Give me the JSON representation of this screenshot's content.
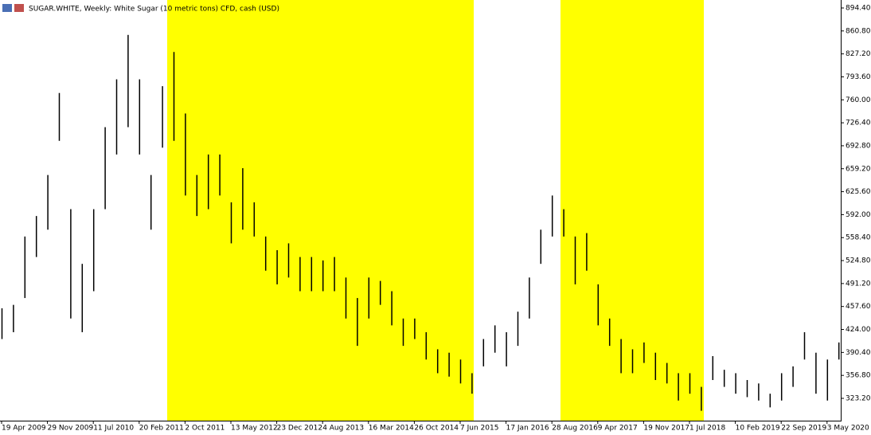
{
  "chart_data": {
    "type": "hl_bar",
    "title": "SUGAR.WHITE, Weekly:  White Sugar (10 metric tons) CFD, cash (USD)",
    "color": "#000000",
    "categories": [
      "19 Apr 2009",
      null,
      null,
      null,
      "29 Nov 2009",
      null,
      null,
      null,
      "11 Jul 2010",
      null,
      null,
      null,
      "20 Feb 2011",
      null,
      null,
      null,
      "2 Oct 2011",
      null,
      null,
      null,
      "13 May 2012",
      null,
      null,
      null,
      "23 Dec 2012",
      null,
      null,
      null,
      "4 Aug 2013",
      null,
      null,
      null,
      "16 Mar 2014",
      null,
      null,
      null,
      "26 Oct 2014",
      null,
      null,
      null,
      "7 Jun 2015",
      null,
      null,
      null,
      "17 Jan 2016",
      null,
      null,
      null,
      "28 Aug 2016",
      null,
      null,
      null,
      "9 Apr 2017",
      null,
      null,
      null,
      "19 Nov 2017",
      null,
      null,
      null,
      "1 Jul 2018",
      null,
      null,
      null,
      "10 Feb 2019",
      null,
      null,
      null,
      "22 Sep 2019",
      null,
      null,
      null,
      "3 May 2020",
      null
    ],
    "high": [
      455,
      460,
      560,
      590,
      650,
      770,
      600,
      520,
      600,
      720,
      790,
      855,
      790,
      650,
      780,
      830,
      740,
      650,
      680,
      680,
      610,
      660,
      610,
      560,
      540,
      550,
      530,
      530,
      525,
      530,
      500,
      470,
      500,
      495,
      480,
      440,
      440,
      420,
      395,
      390,
      380,
      360,
      410,
      430,
      420,
      450,
      500,
      570,
      620,
      600,
      560,
      565,
      490,
      440,
      410,
      395,
      405,
      390,
      375,
      360,
      360,
      340,
      385,
      365,
      360,
      350,
      345,
      330,
      360,
      370,
      420,
      390,
      380,
      405
    ],
    "low": [
      410,
      420,
      470,
      530,
      570,
      700,
      440,
      420,
      480,
      600,
      680,
      720,
      680,
      570,
      690,
      700,
      620,
      590,
      600,
      620,
      550,
      570,
      560,
      510,
      490,
      500,
      480,
      480,
      480,
      480,
      440,
      400,
      440,
      460,
      430,
      400,
      410,
      380,
      360,
      355,
      345,
      330,
      370,
      390,
      370,
      400,
      440,
      520,
      560,
      560,
      490,
      510,
      430,
      400,
      360,
      360,
      375,
      350,
      345,
      320,
      330,
      305,
      350,
      340,
      330,
      325,
      320,
      310,
      320,
      340,
      380,
      330,
      320,
      380
    ],
    "ylim": [
      290.56,
      906.06
    ],
    "yticks": [
      {
        "value": 894.4,
        "label": "894.40"
      },
      {
        "value": 860.8,
        "label": "860.80"
      },
      {
        "value": 827.2,
        "label": "827.20"
      },
      {
        "value": 793.6,
        "label": "793.60"
      },
      {
        "value": 760,
        "label": "760.00"
      },
      {
        "value": 726.4,
        "label": "726.40"
      },
      {
        "value": 692.8,
        "label": "692.80"
      },
      {
        "value": 659.2,
        "label": "659.20"
      },
      {
        "value": 625.6,
        "label": "625.60"
      },
      {
        "value": 592,
        "label": "592.00"
      },
      {
        "value": 558.4,
        "label": "558.40"
      },
      {
        "value": 524.8,
        "label": "524.80"
      },
      {
        "value": 491.2,
        "label": "491.20"
      },
      {
        "value": 457.6,
        "label": "457.60"
      },
      {
        "value": 424,
        "label": "424.00"
      },
      {
        "value": 390.4,
        "label": "390.40"
      },
      {
        "value": 356.8,
        "label": "356.80"
      },
      {
        "value": 323.2,
        "label": "323.20"
      }
    ]
  }
}
